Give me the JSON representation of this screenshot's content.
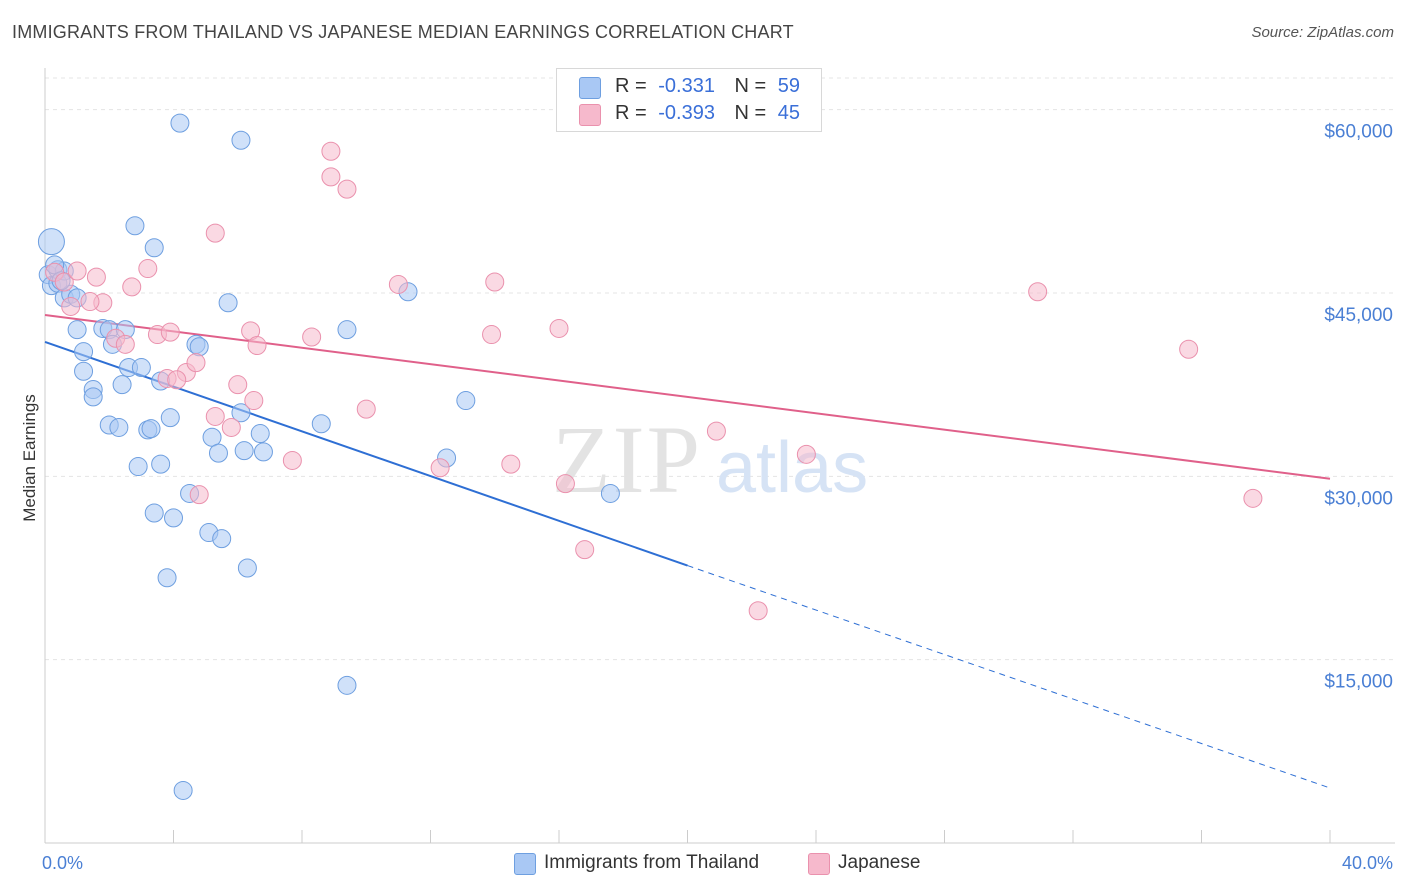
{
  "header": {
    "title": "IMMIGRANTS FROM THAILAND VS JAPANESE MEDIAN EARNINGS CORRELATION CHART",
    "source": "Source: ZipAtlas.com"
  },
  "legend_top": {
    "rows": [
      {
        "r_label": "R =",
        "r_value": "-0.331",
        "n_label": "N =",
        "n_value": "59",
        "color": "#a9c8f4"
      },
      {
        "r_label": "R =",
        "r_value": "-0.393",
        "n_label": "N =",
        "n_value": "45",
        "color": "#f6b9cc"
      }
    ]
  },
  "legend_bottom": {
    "items": [
      {
        "label": "Immigrants from Thailand",
        "color": "#a9c8f4"
      },
      {
        "label": "Japanese",
        "color": "#f6b9cc"
      }
    ]
  },
  "watermark": {
    "zip": "ZIP",
    "atlas": "atlas"
  },
  "chart_data": {
    "type": "scatter",
    "title": "IMMIGRANTS FROM THAILAND VS JAPANESE MEDIAN EARNINGS CORRELATION CHART",
    "xlabel": "",
    "ylabel": "Median Earnings",
    "xlim": [
      0,
      40
    ],
    "ylim": [
      0,
      63000
    ],
    "x_tick_labels": [
      "0.0%",
      "40.0%"
    ],
    "y_ticks": [
      15000,
      30000,
      45000,
      60000
    ],
    "y_tick_labels": [
      "$15,000",
      "$30,000",
      "$45,000",
      "$60,000"
    ],
    "grid": true,
    "series": [
      {
        "name": "Immigrants from Thailand",
        "color": "#a9c8f4",
        "stroke": "#6e9fe0",
        "line_color": "#2e6fd4",
        "trend": {
          "x0": 0,
          "y0": 41000,
          "x1": 20,
          "y1": 22700,
          "dash_to_x": 40,
          "dash_to_y": 4500
        },
        "points": [
          [
            0.2,
            49200
          ],
          [
            0.1,
            46500
          ],
          [
            0.2,
            45600
          ],
          [
            0.4,
            45800
          ],
          [
            0.4,
            46900
          ],
          [
            0.6,
            46800
          ],
          [
            0.6,
            44600
          ],
          [
            0.8,
            44900
          ],
          [
            4.2,
            58900
          ],
          [
            6.1,
            57500
          ],
          [
            2.8,
            50500
          ],
          [
            3.4,
            48700
          ],
          [
            5.7,
            44200
          ],
          [
            11.3,
            45100
          ],
          [
            1.8,
            42100
          ],
          [
            2.0,
            42000
          ],
          [
            1.0,
            42000
          ],
          [
            1.2,
            40200
          ],
          [
            2.1,
            40800
          ],
          [
            4.7,
            40800
          ],
          [
            4.8,
            40600
          ],
          [
            9.4,
            42000
          ],
          [
            1.2,
            38600
          ],
          [
            2.6,
            38900
          ],
          [
            3.0,
            38900
          ],
          [
            1.5,
            37100
          ],
          [
            2.4,
            37500
          ],
          [
            3.6,
            37800
          ],
          [
            1.5,
            36500
          ],
          [
            6.1,
            35200
          ],
          [
            13.1,
            36200
          ],
          [
            2.0,
            34200
          ],
          [
            2.3,
            34000
          ],
          [
            3.2,
            33800
          ],
          [
            3.3,
            33900
          ],
          [
            3.9,
            34800
          ],
          [
            5.2,
            33200
          ],
          [
            6.7,
            33500
          ],
          [
            8.6,
            34300
          ],
          [
            5.4,
            31900
          ],
          [
            6.2,
            32100
          ],
          [
            6.8,
            32000
          ],
          [
            12.5,
            31500
          ],
          [
            2.9,
            30800
          ],
          [
            3.6,
            31000
          ],
          [
            4.5,
            28600
          ],
          [
            17.6,
            28600
          ],
          [
            3.4,
            27000
          ],
          [
            4.0,
            26600
          ],
          [
            5.1,
            25400
          ],
          [
            5.5,
            24900
          ],
          [
            3.8,
            21700
          ],
          [
            6.3,
            22500
          ],
          [
            9.4,
            12900
          ],
          [
            4.3,
            4300
          ],
          [
            0.3,
            47300
          ],
          [
            1.0,
            44600
          ],
          [
            2.5,
            42000
          ],
          [
            0.5,
            46000
          ]
        ]
      },
      {
        "name": "Japanese",
        "color": "#f6b9cc",
        "stroke": "#ea91ad",
        "line_color": "#e0608a",
        "trend": {
          "x0": 0,
          "y0": 43200,
          "x1": 40,
          "y1": 29800
        },
        "points": [
          [
            0.3,
            46700
          ],
          [
            0.6,
            45900
          ],
          [
            1.0,
            46800
          ],
          [
            1.6,
            46300
          ],
          [
            2.7,
            45500
          ],
          [
            3.2,
            47000
          ],
          [
            1.8,
            44200
          ],
          [
            2.2,
            41300
          ],
          [
            2.5,
            40800
          ],
          [
            3.5,
            41600
          ],
          [
            3.9,
            41800
          ],
          [
            5.3,
            49900
          ],
          [
            4.4,
            38500
          ],
          [
            4.7,
            39300
          ],
          [
            3.8,
            38000
          ],
          [
            6.0,
            37500
          ],
          [
            6.4,
            41900
          ],
          [
            6.6,
            40700
          ],
          [
            8.3,
            41400
          ],
          [
            8.9,
            56600
          ],
          [
            8.9,
            54500
          ],
          [
            9.4,
            53500
          ],
          [
            11.0,
            45700
          ],
          [
            14.0,
            45900
          ],
          [
            13.9,
            41600
          ],
          [
            16.0,
            42100
          ],
          [
            6.5,
            36200
          ],
          [
            5.3,
            34900
          ],
          [
            5.8,
            34000
          ],
          [
            10.0,
            35500
          ],
          [
            7.7,
            31300
          ],
          [
            12.3,
            30700
          ],
          [
            14.5,
            31000
          ],
          [
            16.2,
            29400
          ],
          [
            20.9,
            33700
          ],
          [
            23.7,
            31800
          ],
          [
            16.8,
            24000
          ],
          [
            22.2,
            19000
          ],
          [
            30.9,
            45100
          ],
          [
            35.6,
            40400
          ],
          [
            37.6,
            28200
          ],
          [
            4.1,
            37900
          ],
          [
            4.8,
            28500
          ],
          [
            0.8,
            43900
          ],
          [
            1.4,
            44300
          ]
        ]
      }
    ]
  }
}
